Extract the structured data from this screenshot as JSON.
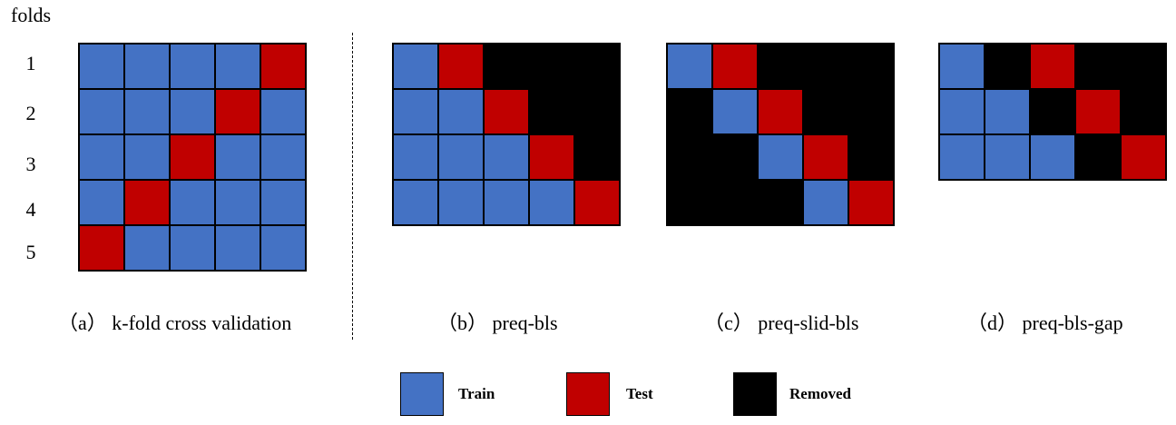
{
  "colors": {
    "train": "#4472C4",
    "test": "#C00000",
    "removed": "#000000"
  },
  "y_axis_label": "folds",
  "fold_labels": [
    "1",
    "2",
    "3",
    "4",
    "5"
  ],
  "panels": [
    {
      "id": "a",
      "caption": "（a） k-fold cross validation",
      "rows": [
        [
          "train",
          "train",
          "train",
          "train",
          "test"
        ],
        [
          "train",
          "train",
          "train",
          "test",
          "train"
        ],
        [
          "train",
          "train",
          "test",
          "train",
          "train"
        ],
        [
          "train",
          "test",
          "train",
          "train",
          "train"
        ],
        [
          "test",
          "train",
          "train",
          "train",
          "train"
        ]
      ]
    },
    {
      "id": "b",
      "caption": "（b） preq-bls",
      "rows": [
        [
          "train",
          "test",
          "removed",
          "removed",
          "removed"
        ],
        [
          "train",
          "train",
          "test",
          "removed",
          "removed"
        ],
        [
          "train",
          "train",
          "train",
          "test",
          "removed"
        ],
        [
          "train",
          "train",
          "train",
          "train",
          "test"
        ]
      ]
    },
    {
      "id": "c",
      "caption": "（c） preq-slid-bls",
      "rows": [
        [
          "train",
          "test",
          "removed",
          "removed",
          "removed"
        ],
        [
          "removed",
          "train",
          "test",
          "removed",
          "removed"
        ],
        [
          "removed",
          "removed",
          "train",
          "test",
          "removed"
        ],
        [
          "removed",
          "removed",
          "removed",
          "train",
          "test"
        ]
      ]
    },
    {
      "id": "d",
      "caption": "（d） preq-bls-gap",
      "rows": [
        [
          "train",
          "removed",
          "test",
          "removed",
          "removed"
        ],
        [
          "train",
          "train",
          "removed",
          "test",
          "removed"
        ],
        [
          "train",
          "train",
          "train",
          "removed",
          "test"
        ]
      ]
    }
  ],
  "legend": [
    {
      "key": "train",
      "label": "Train"
    },
    {
      "key": "test",
      "label": "Test"
    },
    {
      "key": "removed",
      "label": "Removed"
    }
  ]
}
